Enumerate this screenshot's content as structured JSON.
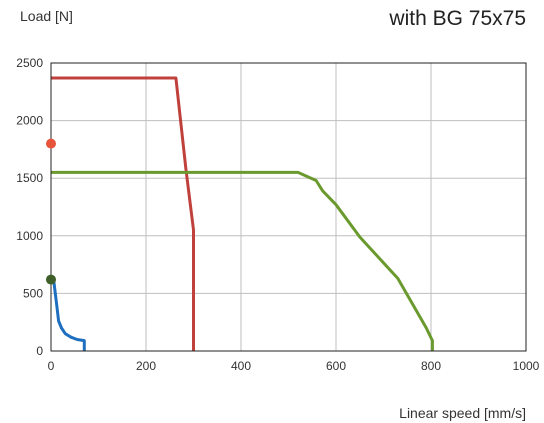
{
  "chart_data": {
    "type": "line",
    "title": "with BG 75x75",
    "ylabel": "Load [N]",
    "xlabel": "Linear speed [mm/s]",
    "xlim": [
      0,
      1000
    ],
    "ylim": [
      0,
      2500
    ],
    "x_ticks": [
      0,
      200,
      400,
      600,
      800,
      1000
    ],
    "y_ticks": [
      0,
      500,
      1000,
      1500,
      2000,
      2500
    ],
    "grid": true,
    "colors": {
      "red": "#c0403c",
      "green": "#6a9a2e",
      "blue": "#1f6fc0",
      "red_point": "#e8543a",
      "green_point": "#3f5f2a",
      "grid": "#bfbfbf",
      "axis": "#222222"
    },
    "series": [
      {
        "color": "red",
        "x": [
          0,
          263,
          284,
          300,
          300
        ],
        "y": [
          2370,
          2370,
          1580,
          1050,
          0
        ]
      },
      {
        "color": "green",
        "x": [
          0,
          520,
          558,
          572,
          600,
          650,
          730,
          790,
          803,
          803
        ],
        "y": [
          1550,
          1550,
          1480,
          1390,
          1270,
          990,
          630,
          200,
          90,
          0
        ]
      },
      {
        "color": "blue",
        "x": [
          0,
          6,
          9,
          12,
          16,
          22,
          30,
          42,
          55,
          70,
          70
        ],
        "y": [
          620,
          600,
          500,
          400,
          260,
          200,
          150,
          120,
          100,
          90,
          0
        ]
      }
    ],
    "points": [
      {
        "color": "red_point",
        "x": 0,
        "y": 1800
      },
      {
        "color": "green_point",
        "x": 0,
        "y": 620
      }
    ]
  }
}
